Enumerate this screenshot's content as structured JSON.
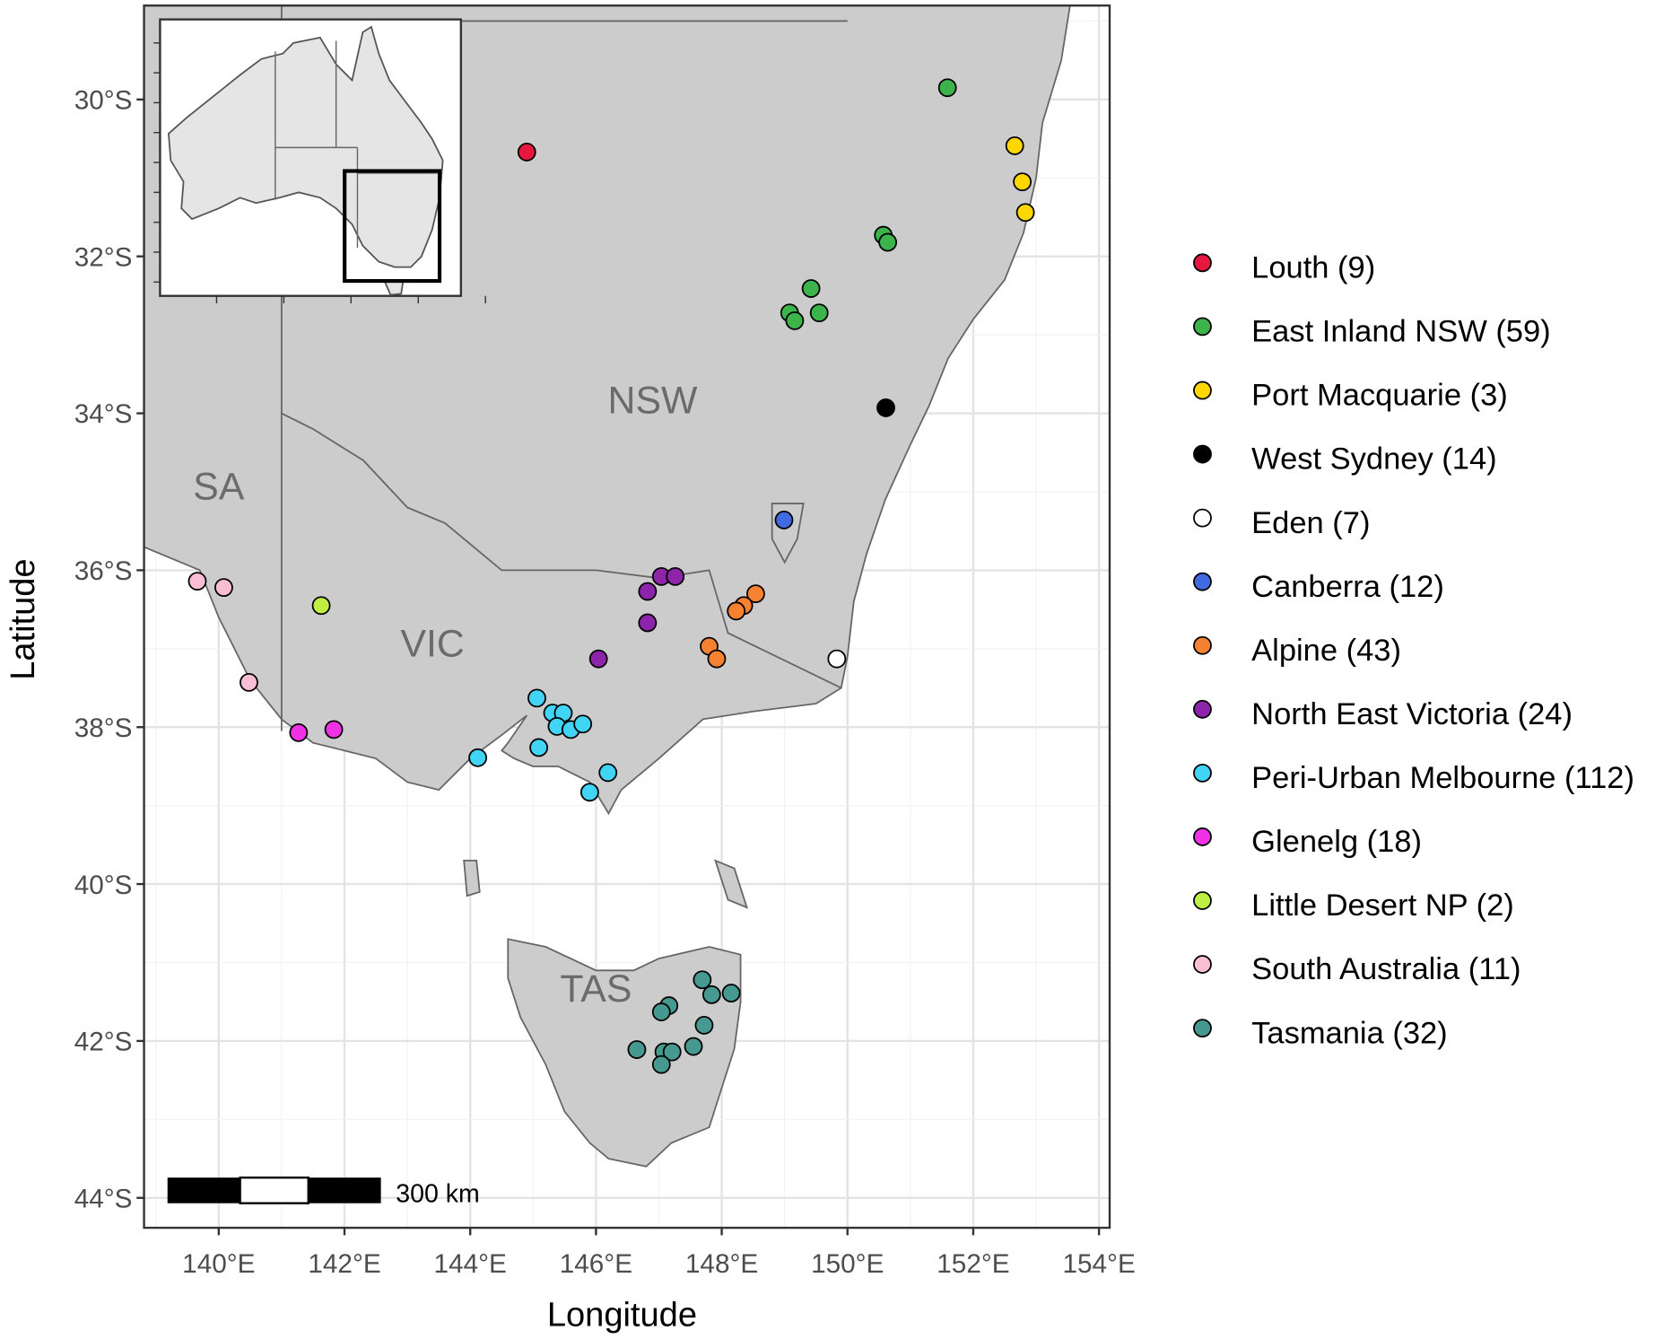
{
  "map_data": {
    "type": "scatter-map",
    "xlabel": "Longitude",
    "ylabel": "Latitude",
    "xlim": [
      138.81,
      154.17
    ],
    "ylim": [
      28.8,
      44.38
    ],
    "x_ticks": [
      140,
      142,
      144,
      146,
      148,
      150,
      152,
      154
    ],
    "x_tick_labels": [
      "140°E",
      "142°E",
      "144°E",
      "146°E",
      "148°E",
      "150°E",
      "152°E",
      "154°E"
    ],
    "y_ticks": [
      30,
      32,
      34,
      36,
      38,
      40,
      42,
      44
    ],
    "y_tick_labels": [
      "30°S",
      "32°S",
      "34°S",
      "36°S",
      "38°S",
      "40°S",
      "42°S",
      "44°S"
    ],
    "grid": true,
    "legend_position": "right",
    "region_labels": [
      {
        "text": "NSW",
        "lon": 146.9,
        "lat": 34.0
      },
      {
        "text": "SA",
        "lon": 140.0,
        "lat": 35.1
      },
      {
        "text": "VIC",
        "lon": 143.4,
        "lat": 37.1
      },
      {
        "text": "TAS",
        "lon": 146.0,
        "lat": 41.5
      }
    ],
    "scale_bar_label": "300 km",
    "groups": [
      {
        "label": "Louth (9)",
        "color": "#e8173f",
        "points": [
          [
            144.9,
            30.67
          ]
        ]
      },
      {
        "label": "East Inland NSW (59)",
        "color": "#3cb44b",
        "points": [
          [
            151.59,
            29.85
          ],
          [
            150.57,
            31.73
          ],
          [
            150.64,
            31.82
          ],
          [
            149.42,
            32.41
          ],
          [
            149.08,
            32.72
          ],
          [
            149.55,
            32.72
          ],
          [
            149.16,
            32.82
          ]
        ]
      },
      {
        "label": "Port Macquarie (3)",
        "color": "#ffd700",
        "points": [
          [
            152.66,
            30.59
          ],
          [
            152.78,
            31.05
          ],
          [
            152.83,
            31.44
          ]
        ]
      },
      {
        "label": "West Sydney (14)",
        "color": "#000000",
        "points": [
          [
            150.61,
            33.93
          ]
        ]
      },
      {
        "label": "Eden (7)",
        "color": "#ffffff",
        "points": [
          [
            149.83,
            37.13
          ]
        ]
      },
      {
        "label": "Canberra (12)",
        "color": "#4169e1",
        "points": [
          [
            148.99,
            35.36
          ]
        ]
      },
      {
        "label": "Alpine (43)",
        "color": "#f58231",
        "points": [
          [
            148.54,
            36.3
          ],
          [
            148.35,
            36.45
          ],
          [
            148.23,
            36.52
          ],
          [
            147.8,
            36.97
          ],
          [
            147.92,
            37.13
          ]
        ]
      },
      {
        "label": "North East Victoria (24)",
        "color": "#8e24aa",
        "points": [
          [
            147.04,
            36.08
          ],
          [
            147.26,
            36.08
          ],
          [
            146.82,
            36.27
          ],
          [
            146.82,
            36.67
          ],
          [
            146.04,
            37.13
          ]
        ]
      },
      {
        "label": "Peri-Urban Melbourne (112)",
        "color": "#42d4f4",
        "points": [
          [
            145.06,
            37.63
          ],
          [
            145.31,
            37.82
          ],
          [
            145.48,
            37.82
          ],
          [
            145.38,
            37.99
          ],
          [
            145.6,
            38.03
          ],
          [
            145.79,
            37.96
          ],
          [
            145.09,
            38.26
          ],
          [
            144.12,
            38.39
          ],
          [
            146.19,
            38.58
          ],
          [
            145.9,
            38.83
          ]
        ]
      },
      {
        "label": "Glenelg (18)",
        "color": "#f032e6",
        "points": [
          [
            141.27,
            38.07
          ],
          [
            141.83,
            38.03
          ]
        ]
      },
      {
        "label": "Little Desert NP (2)",
        "color": "#bfef45",
        "points": [
          [
            141.63,
            36.45
          ]
        ]
      },
      {
        "label": "South Australia (11)",
        "color": "#fabed4",
        "points": [
          [
            139.66,
            36.14
          ],
          [
            140.08,
            36.22
          ],
          [
            140.48,
            37.43
          ]
        ]
      },
      {
        "label": "Tasmania (32)",
        "color": "#469990",
        "points": [
          [
            147.69,
            41.22
          ],
          [
            147.84,
            41.41
          ],
          [
            148.15,
            41.39
          ],
          [
            147.16,
            41.55
          ],
          [
            147.04,
            41.63
          ],
          [
            147.72,
            41.8
          ],
          [
            146.65,
            42.11
          ],
          [
            147.08,
            42.14
          ],
          [
            147.21,
            42.14
          ],
          [
            147.55,
            42.07
          ],
          [
            147.04,
            42.3
          ]
        ]
      }
    ]
  }
}
